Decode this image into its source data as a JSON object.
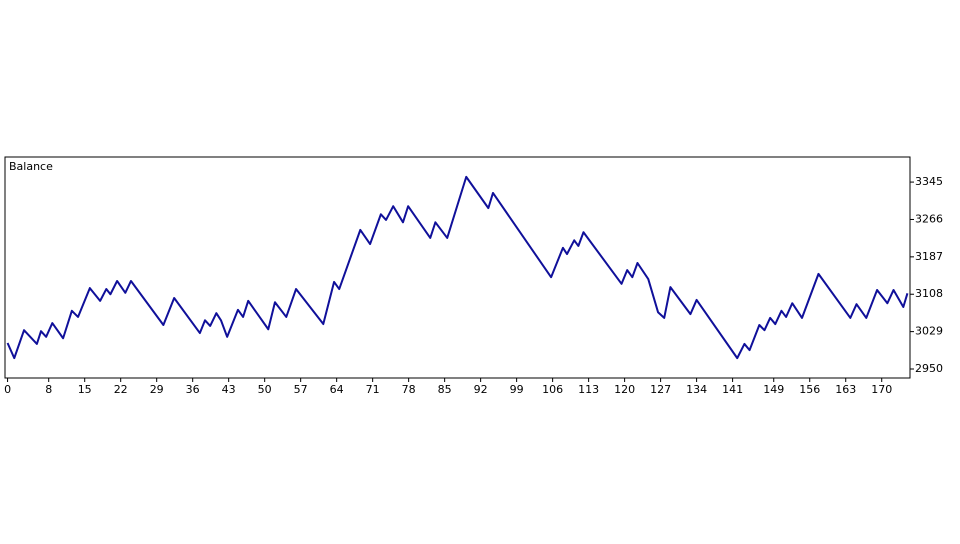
{
  "chart_data": {
    "type": "line",
    "title": "Balance",
    "x": [
      0,
      1.3,
      3.2,
      5.7,
      6.5,
      7.5,
      8.7,
      10.8,
      12.5,
      13.7,
      16,
      18,
      19.2,
      20,
      21.3,
      22.9,
      24,
      30.3,
      32.4,
      37.4,
      38.4,
      39.4,
      40.6,
      41.5,
      42.7,
      44.8,
      45.8,
      46.8,
      50.7,
      52,
      54.2,
      56.1,
      61.4,
      63.5,
      64.5,
      68.6,
      70.5,
      72.6,
      73.6,
      75,
      76.9,
      77.9,
      82.2,
      83.2,
      85.5,
      89.2,
      93.5,
      94.4,
      105.7,
      108,
      108.8,
      110.2,
      111,
      112,
      119.4,
      120.5,
      121.5,
      122.5,
      124.6,
      126.5,
      127.7,
      128.9,
      132.8,
      134,
      141.9,
      143.3,
      144.3,
      146.2,
      147.2,
      148.3,
      149.3,
      150.5,
      151.4,
      152.6,
      154.5,
      157.7,
      163.9,
      165.1,
      167,
      169.1,
      171.1,
      172.3,
      174.2,
      175
    ],
    "series": [
      {
        "name": "Balance",
        "color": "#10109a",
        "values": [
          3005,
          2973,
          3032,
          3003,
          3030,
          3018,
          3047,
          3015,
          3073,
          3060,
          3121,
          3094,
          3119,
          3108,
          3136,
          3111,
          3136,
          3043,
          3100,
          3026,
          3053,
          3041,
          3068,
          3053,
          3018,
          3075,
          3060,
          3094,
          3034,
          3091,
          3060,
          3119,
          3045,
          3134,
          3119,
          3244,
          3214,
          3277,
          3265,
          3294,
          3260,
          3294,
          3227,
          3260,
          3227,
          3356,
          3290,
          3322,
          3144,
          3206,
          3193,
          3222,
          3210,
          3239,
          3130,
          3159,
          3144,
          3174,
          3140,
          3070,
          3058,
          3123,
          3066,
          3096,
          2973,
          3003,
          2990,
          3043,
          3032,
          3058,
          3045,
          3073,
          3060,
          3089,
          3058,
          3151,
          3058,
          3087,
          3058,
          3117,
          3089,
          3117,
          3081,
          3110
        ]
      }
    ],
    "xlim": [
      -0.5,
      175.5
    ],
    "xticks": [
      0,
      8,
      15,
      22,
      29,
      36,
      43,
      50,
      57,
      64,
      71,
      78,
      85,
      92,
      99,
      106,
      113,
      120,
      127,
      134,
      141,
      149,
      156,
      163,
      170
    ],
    "ylim": [
      2931,
      3398
    ],
    "yticks": [
      2950,
      3029,
      3108,
      3187,
      3266,
      3345
    ],
    "grid": true
  }
}
